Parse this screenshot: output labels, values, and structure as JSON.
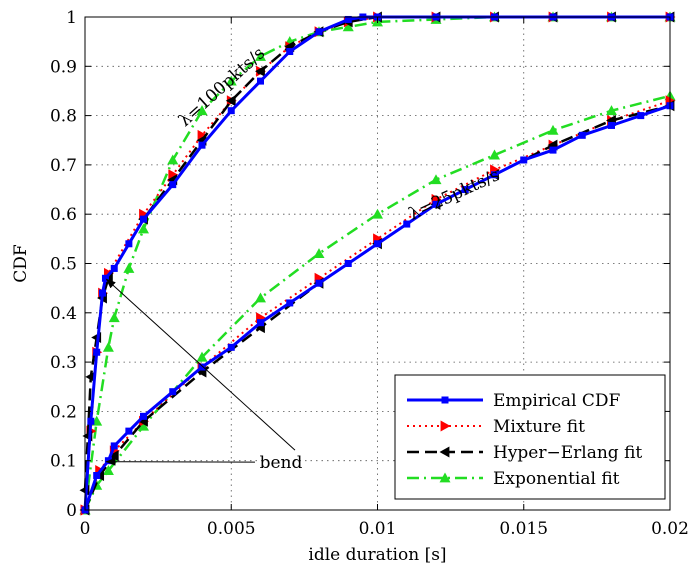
{
  "chart_data": {
    "type": "line",
    "title": "",
    "xlabel": "idle duration [s]",
    "ylabel": "CDF",
    "xlim": [
      0,
      0.02
    ],
    "ylim": [
      0,
      1
    ],
    "xticks": [
      "0",
      "0.005",
      "0.01",
      "0.015",
      "0.02"
    ],
    "yticks": [
      "0",
      "0.1",
      "0.2",
      "0.3",
      "0.4",
      "0.5",
      "0.6",
      "0.7",
      "0.8",
      "0.9",
      "1"
    ],
    "grid": true,
    "legend_position": "bottom-right",
    "legend": [
      "Empirical CDF",
      "Mixture fit",
      "Hyper−Erlang fit",
      "Exponential fit"
    ],
    "series": [
      {
        "name": "Empirical CDF",
        "group": "λ=100pkts/s",
        "color": "#0000ff",
        "style": "solid",
        "marker": "square",
        "x": [
          0,
          0.0002,
          0.0004,
          0.0006,
          0.0007,
          0.001,
          0.0015,
          0.002,
          0.003,
          0.004,
          0.005,
          0.006,
          0.007,
          0.008,
          0.009,
          0.0095,
          0.01,
          0.012,
          0.014,
          0.016,
          0.018,
          0.02
        ],
        "y": [
          0,
          0.18,
          0.32,
          0.44,
          0.47,
          0.49,
          0.54,
          0.59,
          0.66,
          0.74,
          0.81,
          0.87,
          0.93,
          0.97,
          0.995,
          1.0,
          1.0,
          1.0,
          1.0,
          1.0,
          1.0,
          1.0
        ]
      },
      {
        "name": "Mixture fit",
        "group": "λ=100pkts/s",
        "color": "#ff0000",
        "style": "dotted",
        "marker": "triangle-right",
        "x": [
          0,
          0.0002,
          0.0004,
          0.0006,
          0.0008,
          0.002,
          0.003,
          0.004,
          0.005,
          0.006,
          0.007,
          0.008,
          0.009,
          0.01,
          0.012,
          0.014,
          0.016,
          0.018,
          0.02
        ],
        "y": [
          0,
          0.16,
          0.32,
          0.44,
          0.48,
          0.6,
          0.68,
          0.76,
          0.83,
          0.89,
          0.94,
          0.97,
          0.99,
          1.0,
          1.0,
          1.0,
          1.0,
          1.0,
          1.0
        ]
      },
      {
        "name": "Hyper−Erlang fit",
        "group": "λ=100pkts/s",
        "color": "#000000",
        "style": "dashed",
        "marker": "triangle-left",
        "x": [
          0,
          0.0001,
          0.0002,
          0.0004,
          0.0006,
          0.0008,
          0.002,
          0.003,
          0.004,
          0.005,
          0.006,
          0.007,
          0.008,
          0.009,
          0.01,
          0.012,
          0.014,
          0.016,
          0.018,
          0.02
        ],
        "y": [
          0.04,
          0.15,
          0.27,
          0.35,
          0.43,
          0.47,
          0.59,
          0.67,
          0.75,
          0.83,
          0.89,
          0.94,
          0.97,
          0.99,
          1.0,
          1.0,
          1.0,
          1.0,
          1.0,
          1.0
        ]
      },
      {
        "name": "Exponential fit",
        "group": "λ=100pkts/s",
        "color": "#22dd22",
        "style": "dashdot",
        "marker": "triangle-up",
        "x": [
          0,
          0.0004,
          0.0008,
          0.001,
          0.0015,
          0.002,
          0.003,
          0.004,
          0.005,
          0.006,
          0.007,
          0.008,
          0.009,
          0.01,
          0.012,
          0.014,
          0.016,
          0.018,
          0.02
        ],
        "y": [
          0,
          0.18,
          0.33,
          0.39,
          0.49,
          0.57,
          0.71,
          0.81,
          0.87,
          0.92,
          0.95,
          0.97,
          0.98,
          0.99,
          0.995,
          1.0,
          1.0,
          1.0,
          1.0
        ]
      },
      {
        "name": "Empirical CDF",
        "group": "λ=25pkts/s",
        "color": "#0000ff",
        "style": "solid",
        "marker": "square",
        "x": [
          0,
          0.0004,
          0.0008,
          0.001,
          0.0015,
          0.002,
          0.003,
          0.004,
          0.005,
          0.006,
          0.007,
          0.008,
          0.009,
          0.01,
          0.011,
          0.012,
          0.013,
          0.014,
          0.015,
          0.016,
          0.017,
          0.018,
          0.019,
          0.02
        ],
        "y": [
          0,
          0.07,
          0.1,
          0.13,
          0.16,
          0.19,
          0.24,
          0.29,
          0.33,
          0.38,
          0.42,
          0.46,
          0.5,
          0.54,
          0.58,
          0.62,
          0.65,
          0.68,
          0.71,
          0.73,
          0.76,
          0.78,
          0.8,
          0.82
        ]
      },
      {
        "name": "Mixture fit",
        "group": "λ=25pkts/s",
        "color": "#ff0000",
        "style": "dotted",
        "marker": "triangle-right",
        "x": [
          0,
          0.0005,
          0.001,
          0.002,
          0.004,
          0.006,
          0.008,
          0.01,
          0.012,
          0.014,
          0.016,
          0.018,
          0.02
        ],
        "y": [
          0,
          0.08,
          0.12,
          0.18,
          0.29,
          0.39,
          0.47,
          0.55,
          0.63,
          0.69,
          0.74,
          0.79,
          0.83
        ]
      },
      {
        "name": "Hyper−Erlang fit",
        "group": "λ=25pkts/s",
        "color": "#000000",
        "style": "dashed",
        "marker": "triangle-left",
        "x": [
          0,
          0.0005,
          0.001,
          0.002,
          0.004,
          0.006,
          0.008,
          0.01,
          0.012,
          0.014,
          0.016,
          0.018,
          0.02
        ],
        "y": [
          0,
          0.07,
          0.11,
          0.18,
          0.28,
          0.37,
          0.46,
          0.54,
          0.62,
          0.68,
          0.74,
          0.79,
          0.82
        ]
      },
      {
        "name": "Exponential fit",
        "group": "λ=25pkts/s",
        "color": "#22dd22",
        "style": "dashdot",
        "marker": "triangle-up",
        "x": [
          0,
          0.0004,
          0.0008,
          0.002,
          0.004,
          0.006,
          0.008,
          0.01,
          0.012,
          0.014,
          0.016,
          0.018,
          0.02
        ],
        "y": [
          0,
          0.05,
          0.08,
          0.17,
          0.31,
          0.43,
          0.52,
          0.6,
          0.67,
          0.72,
          0.77,
          0.81,
          0.84
        ]
      }
    ],
    "annotations": [
      {
        "text": "λ=100pkts/s",
        "x": 0.0048,
        "y": 0.85,
        "angle_deg": -42
      },
      {
        "text": "λ=25pkts/s",
        "x": 0.0127,
        "y": 0.63,
        "angle_deg": -25
      },
      {
        "text": "bend",
        "x": 0.0067,
        "y": 0.085,
        "arrows_to": [
          [
            0.0007,
            0.47
          ],
          [
            0.0007,
            0.1
          ]
        ]
      }
    ]
  }
}
